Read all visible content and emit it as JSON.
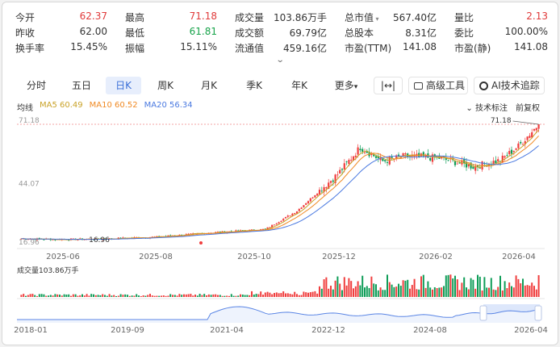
{
  "stats": [
    [
      {
        "label": "今开",
        "value": "62.37",
        "tone": "red"
      },
      {
        "label": "最高",
        "value": "71.18",
        "tone": "red"
      },
      {
        "label": "成交量",
        "value": "103.86万手",
        "tone": ""
      },
      {
        "label": "总市值",
        "value": "567.40亿",
        "tone": "",
        "caret": true
      },
      {
        "label": "量比",
        "value": "2.13",
        "tone": "red"
      }
    ],
    [
      {
        "label": "昨收",
        "value": "62.00",
        "tone": ""
      },
      {
        "label": "最低",
        "value": "61.81",
        "tone": "green"
      },
      {
        "label": "成交额",
        "value": "69.79亿",
        "tone": ""
      },
      {
        "label": "总股本",
        "value": "8.31亿",
        "tone": ""
      },
      {
        "label": "委比",
        "value": "100.00%",
        "tone": ""
      }
    ],
    [
      {
        "label": "换手率",
        "value": "15.45%",
        "tone": ""
      },
      {
        "label": "振幅",
        "value": "15.11%",
        "tone": ""
      },
      {
        "label": "流通值",
        "value": "459.16亿",
        "tone": ""
      },
      {
        "label": "市盈(TTM)",
        "value": "141.08",
        "tone": ""
      },
      {
        "label": "市盈(静)",
        "value": "141.08",
        "tone": ""
      }
    ]
  ],
  "expand_caret": "⌄",
  "tabs": [
    {
      "label": "分时"
    },
    {
      "label": "五日"
    },
    {
      "label": "日K",
      "active": true
    },
    {
      "label": "周K"
    },
    {
      "label": "月K"
    },
    {
      "label": "季K"
    },
    {
      "label": "年K"
    },
    {
      "label": "更多"
    }
  ],
  "tabs_more_caret": "▾",
  "tools": {
    "fit_label": "|↔|",
    "advanced_label": "高级工具",
    "ai_label": "AI技术追踪"
  },
  "ma_legend": {
    "title": "均线",
    "ma5": "MA5 60.49",
    "ma10": "MA10 60.52",
    "ma20": "MA20 56.34"
  },
  "right_tags": [
    "技术标注",
    "前复权"
  ],
  "right_tag_prefix": "⌄",
  "colors": {
    "up": "#f03e3e",
    "down": "#0f9d58",
    "ma5": "#c9a227",
    "ma10": "#f08a24",
    "ma20": "#4a79e0",
    "nav": "#5b86e5"
  },
  "chart_data": [
    {
      "type": "candlestick",
      "y_axis_labels": [
        "71.18",
        "44.07",
        "16.96"
      ],
      "ylim": [
        16.96,
        71.18
      ],
      "x_ticks": [
        "2025-06",
        "2025-08",
        "2025-10",
        "2025-12",
        "2026-02",
        "2026-04"
      ],
      "annotations": {
        "high_label": "71.18",
        "low_label": "16.96"
      },
      "series_points": [
        {
          "date": "2025-05",
          "close": 18.2
        },
        {
          "date": "2025-06",
          "close": 17.8
        },
        {
          "date": "2025-07",
          "close": 18.0
        },
        {
          "date": "2025-08",
          "close": 19.0
        },
        {
          "date": "2025-09",
          "close": 21.0
        },
        {
          "date": "2025-10",
          "close": 22.5
        },
        {
          "date": "2025-10-20",
          "close": 31.0
        },
        {
          "date": "2025-11-05",
          "close": 48.0
        },
        {
          "date": "2025-11-15",
          "close": 60.5
        },
        {
          "date": "2025-11-25",
          "close": 54.0
        },
        {
          "date": "2025-12",
          "close": 56.5
        },
        {
          "date": "2026-01",
          "close": 55.5
        },
        {
          "date": "2026-02",
          "close": 51.5
        },
        {
          "date": "2026-03",
          "close": 54.5
        },
        {
          "date": "2026-03-25",
          "close": 61.0
        },
        {
          "date": "2026-04",
          "close": 71.18
        }
      ]
    },
    {
      "type": "bar",
      "title": "成交量103.86万手",
      "unit": "万手",
      "last_value": 103.86
    },
    {
      "type": "area",
      "x_ticks": [
        "2018-01",
        "2019-09",
        "2021-04",
        "2022-12",
        "2024-08",
        "2026-04"
      ]
    }
  ]
}
